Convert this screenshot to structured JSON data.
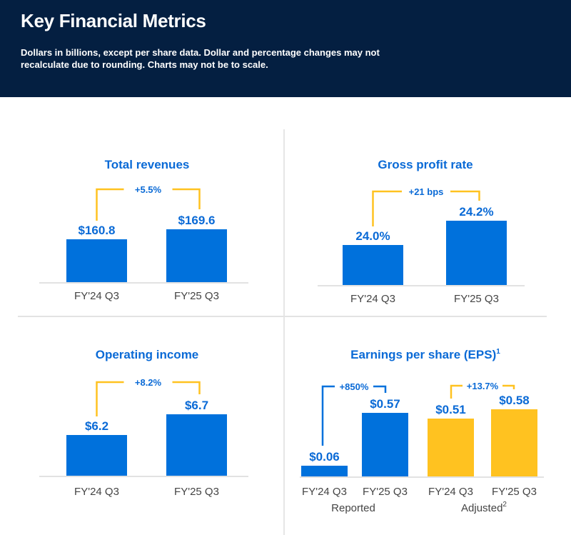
{
  "header": {
    "title": "Key Financial Metrics",
    "subtitle": "Dollars in billions, except per share data. Dollar and percentage changes may not recalculate due to rounding. Charts may not be to scale."
  },
  "colors": {
    "header_bg": "#041f41",
    "primary_blue": "#0071dc",
    "accent_yellow": "#ffc220",
    "text_blue": "#0a6ad6",
    "label_gray": "#444444"
  },
  "chart_data": [
    {
      "type": "bar",
      "title": "Total revenues",
      "categories": [
        "FY'24 Q3",
        "FY'25 Q3"
      ],
      "values": [
        160.8,
        169.6
      ],
      "value_labels": [
        "$160.8",
        "$169.6"
      ],
      "change_label": "+5.5%",
      "bar_color": "#0071dc",
      "bracket_color": "#ffc220"
    },
    {
      "type": "bar",
      "title": "Gross profit rate",
      "categories": [
        "FY'24 Q3",
        "FY'25 Q3"
      ],
      "values": [
        24.0,
        24.2
      ],
      "value_labels": [
        "24.0%",
        "24.2%"
      ],
      "change_label": "+21 bps",
      "bar_color": "#0071dc",
      "bracket_color": "#ffc220"
    },
    {
      "type": "bar",
      "title": "Operating income",
      "categories": [
        "FY'24 Q3",
        "FY'25 Q3"
      ],
      "values": [
        6.2,
        6.7
      ],
      "value_labels": [
        "$6.2",
        "$6.7"
      ],
      "change_label": "+8.2%",
      "bar_color": "#0071dc",
      "bracket_color": "#ffc220"
    },
    {
      "type": "bar",
      "title": "Earnings per share (EPS)",
      "title_superscript": "1",
      "groups": [
        {
          "name": "Reported",
          "name_superscript": "",
          "categories": [
            "FY'24 Q3",
            "FY'25 Q3"
          ],
          "values": [
            0.06,
            0.57
          ],
          "value_labels": [
            "$0.06",
            "$0.57"
          ],
          "change_label": "+850%",
          "bar_color": "#0071dc",
          "bracket_color": "#0071dc"
        },
        {
          "name": "Adjusted",
          "name_superscript": "2",
          "categories": [
            "FY'24 Q3",
            "FY'25 Q3"
          ],
          "values": [
            0.51,
            0.58
          ],
          "value_labels": [
            "$0.51",
            "$0.58"
          ],
          "change_label": "+13.7%",
          "bar_color": "#ffc220",
          "bracket_color": "#ffc220"
        }
      ]
    }
  ]
}
